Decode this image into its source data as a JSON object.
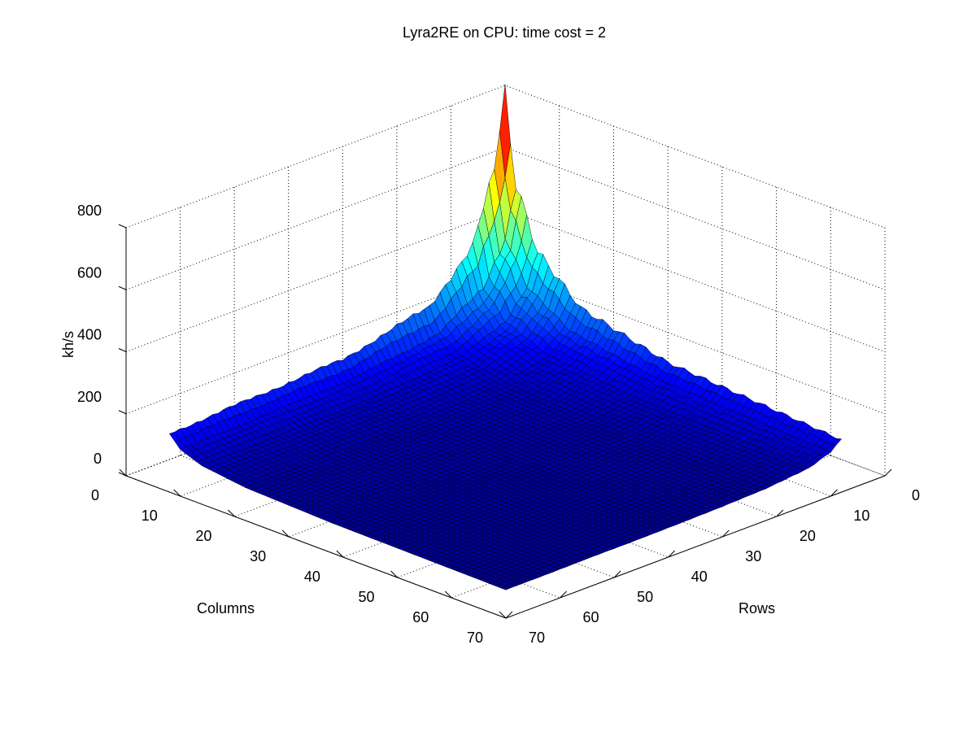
{
  "chart_data": {
    "type": "surface",
    "title": "Lyra2RE on CPU: time cost = 2",
    "xlabel": "Columns",
    "ylabel": "Rows",
    "zlabel": "kh/s",
    "x_ticks": [
      "0",
      "10",
      "20",
      "30",
      "40",
      "50",
      "60",
      "70"
    ],
    "y_ticks": [
      "0",
      "10",
      "20",
      "30",
      "40",
      "50",
      "60",
      "70"
    ],
    "z_ticks": [
      "0",
      "200",
      "400",
      "600",
      "800"
    ],
    "xlim": [
      0,
      70
    ],
    "ylim": [
      0,
      70
    ],
    "zlim": [
      0,
      800
    ],
    "columns_range": [
      2,
      64
    ],
    "rows_range": [
      2,
      64
    ],
    "colormap": "jet",
    "grid": true,
    "description": "",
    "peak": {
      "columns": 2,
      "rows": 2,
      "value": 800
    },
    "series_at_columns_2": {
      "rows": [
        2,
        4,
        8,
        16,
        32,
        64
      ],
      "values": [
        800,
        560,
        350,
        205,
        140,
        110
      ]
    },
    "series_at_rows_2": {
      "columns": [
        2,
        4,
        8,
        16,
        32,
        64
      ],
      "values": [
        800,
        520,
        330,
        200,
        130,
        90
      ]
    },
    "far_corner_value": 8
  }
}
